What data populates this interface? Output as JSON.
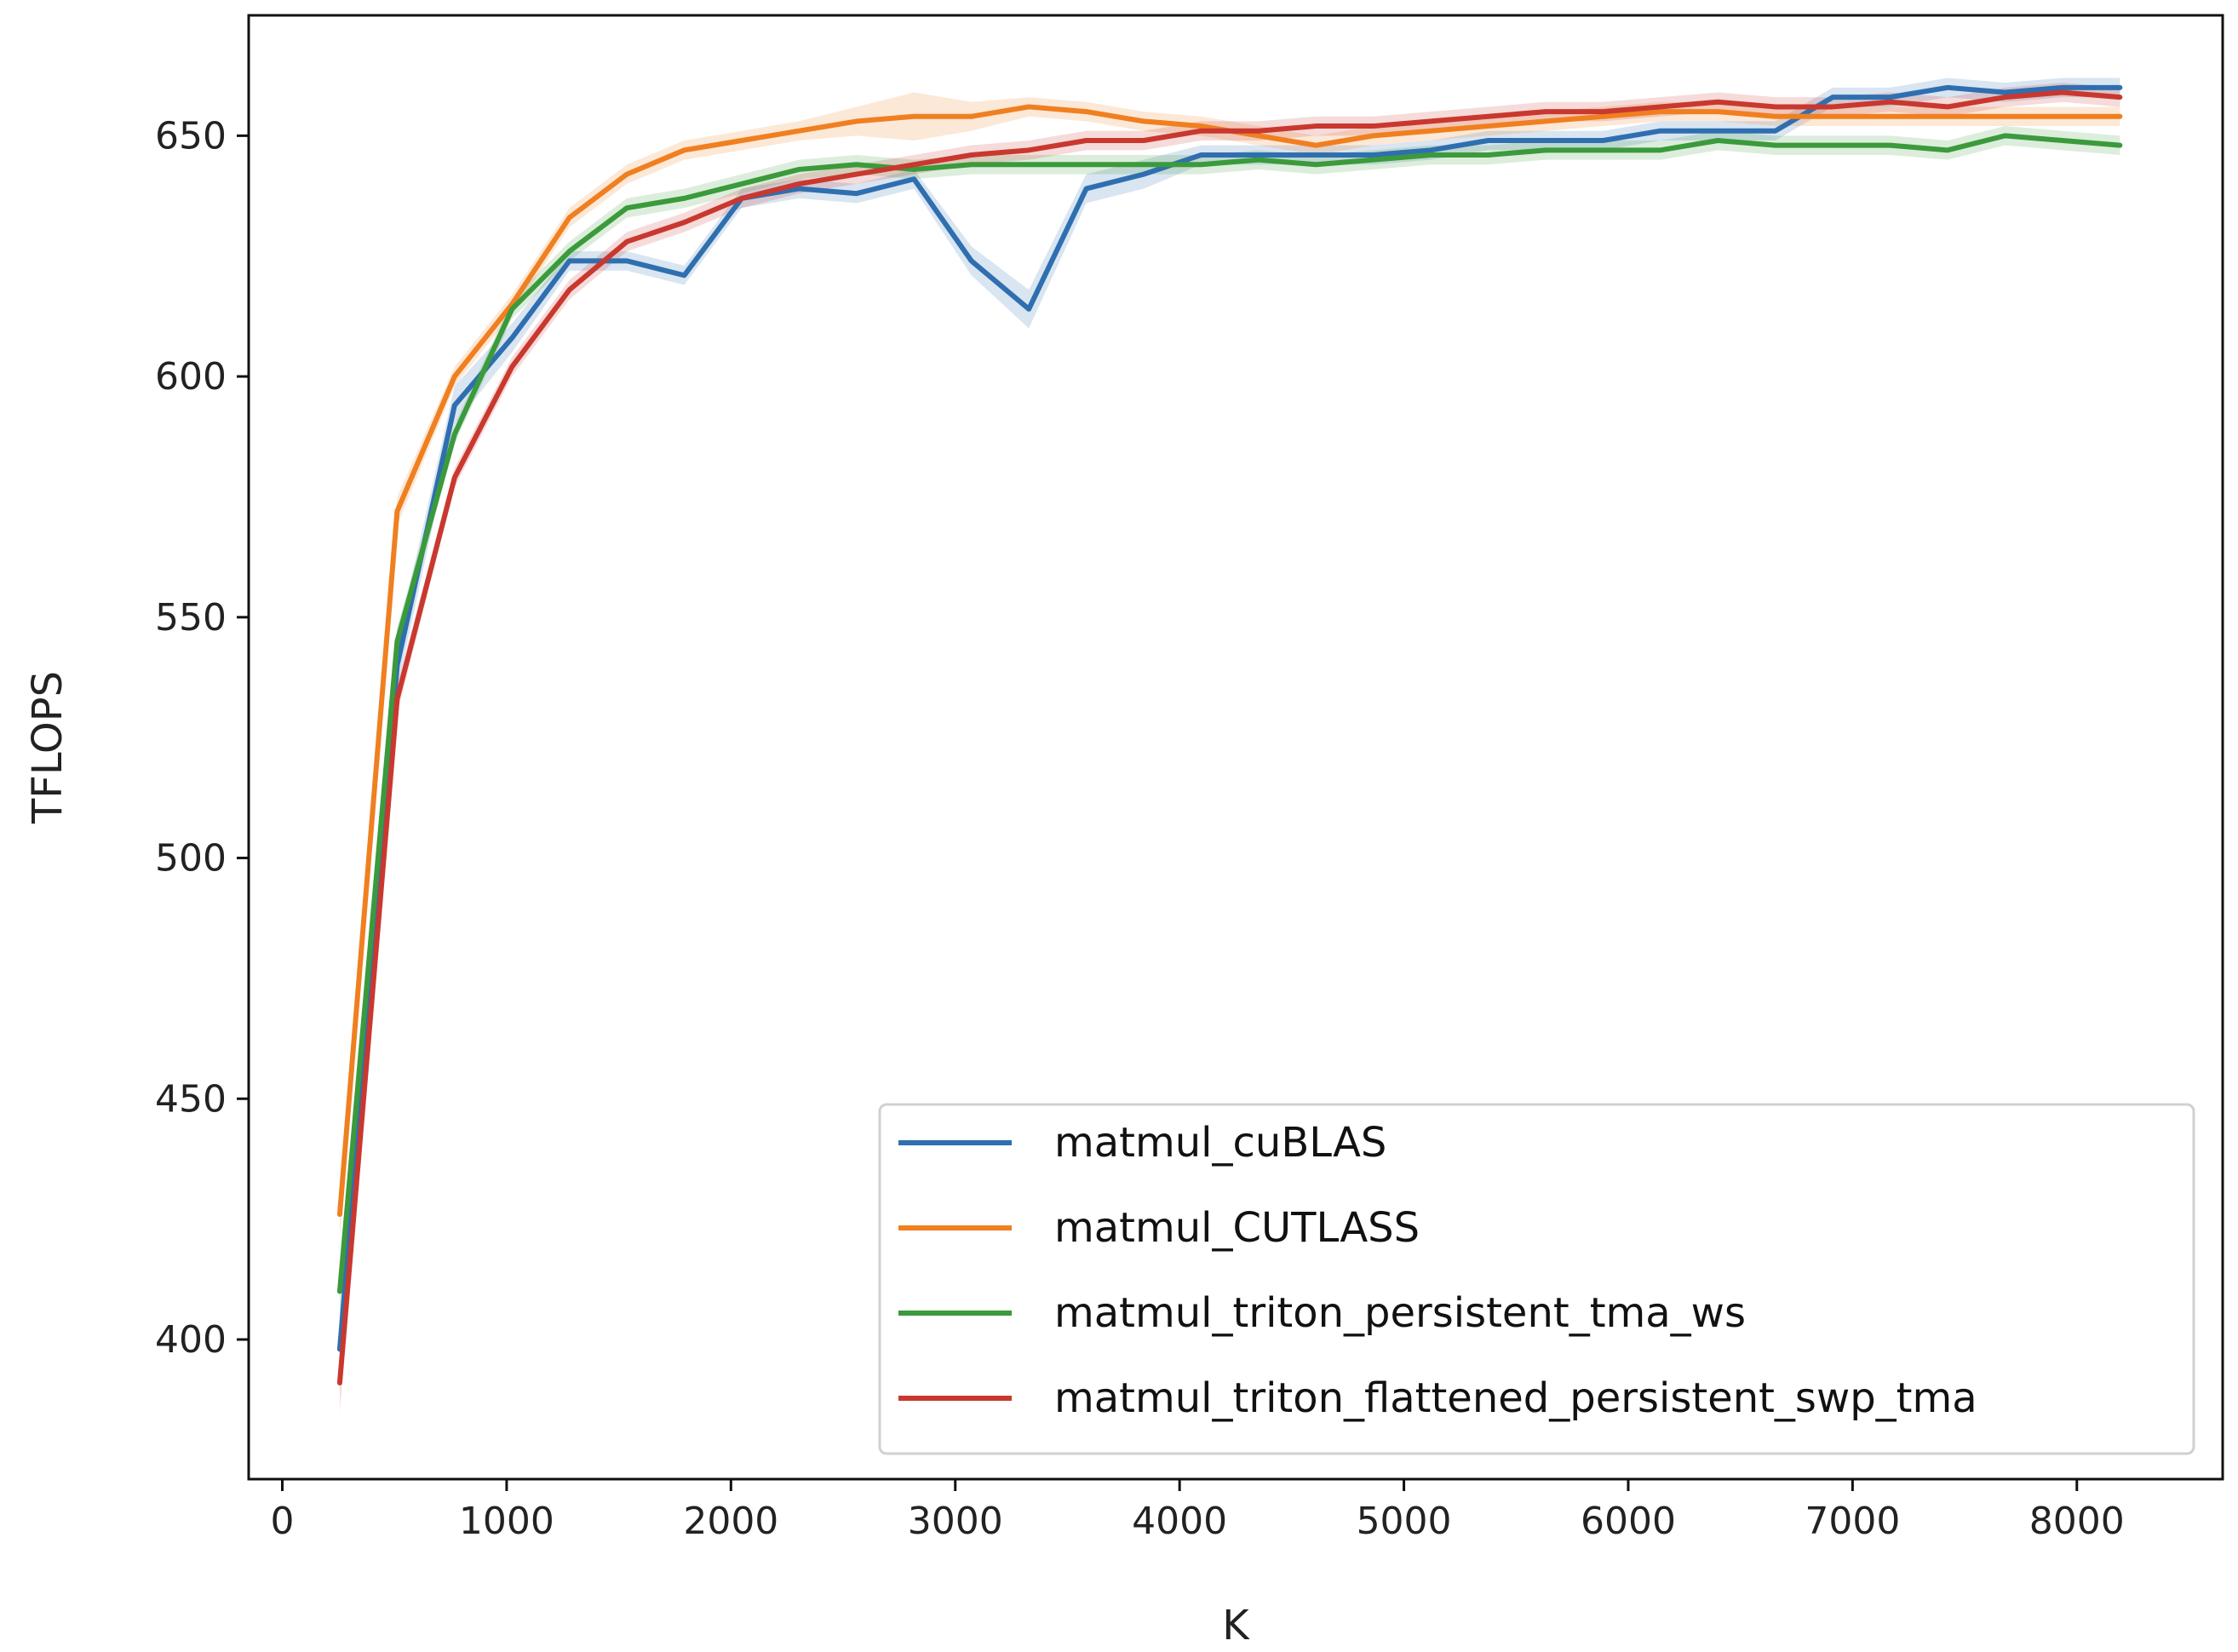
{
  "chart_data": {
    "type": "line",
    "title": "",
    "xlabel": "K",
    "ylabel": "TFLOPS",
    "xlim": [
      -150,
      8650
    ],
    "ylim": [
      371,
      675
    ],
    "xticks": [
      0,
      1000,
      2000,
      3000,
      4000,
      5000,
      6000,
      7000,
      8000
    ],
    "yticks": [
      400,
      450,
      500,
      550,
      600,
      650
    ],
    "grid": false,
    "legend_position": "lower-right",
    "x": [
      256,
      512,
      768,
      1024,
      1280,
      1536,
      1792,
      2048,
      2304,
      2560,
      2816,
      3072,
      3328,
      3584,
      3840,
      4096,
      4352,
      4608,
      4864,
      5120,
      5376,
      5632,
      5888,
      6144,
      6400,
      6656,
      6912,
      7168,
      7424,
      7680,
      7936,
      8192
    ],
    "series": [
      {
        "name": "matmul_cuBLAS",
        "color": "#2f6fb0",
        "values": [
          398,
          540,
          594,
          608,
          624,
          624,
          621,
          637,
          639,
          638,
          641,
          624,
          614,
          639,
          642,
          646,
          646,
          646,
          646,
          647,
          649,
          649,
          649,
          651,
          651,
          651,
          658,
          658,
          660,
          659,
          660,
          660
        ],
        "band": [
          7,
          5,
          4,
          3,
          2,
          2,
          2,
          2,
          2,
          2,
          2,
          3,
          4,
          3,
          3,
          2,
          2,
          2,
          2,
          2,
          2,
          2,
          2,
          2,
          2,
          2,
          2,
          2,
          2,
          2,
          2,
          2
        ]
      },
      {
        "name": "matmul_CUTLASS",
        "color": "#f07f20",
        "values": [
          426,
          572,
          600,
          615,
          633,
          642,
          647,
          649,
          651,
          653,
          654,
          654,
          656,
          655,
          653,
          652,
          650,
          648,
          650,
          651,
          652,
          653,
          654,
          655,
          655,
          654,
          654,
          654,
          654,
          654,
          654,
          654
        ],
        "band": [
          5,
          3,
          2,
          2,
          2,
          2,
          2,
          2,
          2,
          3,
          5,
          3,
          2,
          2,
          2,
          2,
          2,
          2,
          2,
          2,
          2,
          2,
          2,
          2,
          2,
          2,
          2,
          2,
          2,
          2,
          2,
          2
        ]
      },
      {
        "name": "matmul_triton_persistent_tma_ws",
        "color": "#3b9a3b",
        "values": [
          410,
          545,
          588,
          614,
          626,
          635,
          637,
          640,
          643,
          644,
          643,
          644,
          644,
          644,
          644,
          644,
          645,
          644,
          645,
          646,
          646,
          647,
          647,
          647,
          649,
          648,
          648,
          648,
          647,
          650,
          649,
          648
        ],
        "band": [
          5,
          3,
          2,
          2,
          2,
          2,
          2,
          2,
          2,
          2,
          2,
          2,
          2,
          2,
          2,
          2,
          2,
          2,
          2,
          2,
          2,
          2,
          2,
          2,
          2,
          2,
          2,
          2,
          2,
          2,
          2,
          2
        ]
      },
      {
        "name": "matmul_triton_flattened_persistent_swp_tma",
        "color": "#c9382f",
        "values": [
          391,
          533,
          579,
          602,
          618,
          628,
          632,
          637,
          640,
          642,
          644,
          646,
          647,
          649,
          649,
          651,
          651,
          652,
          652,
          653,
          654,
          655,
          655,
          656,
          657,
          656,
          656,
          657,
          656,
          658,
          659,
          658
        ],
        "band": [
          6,
          3,
          2,
          2,
          2,
          2,
          2,
          2,
          2,
          2,
          2,
          2,
          2,
          2,
          2,
          2,
          2,
          2,
          2,
          2,
          2,
          2,
          2,
          2,
          2,
          2,
          2,
          2,
          2,
          2,
          2,
          2
        ]
      }
    ]
  }
}
